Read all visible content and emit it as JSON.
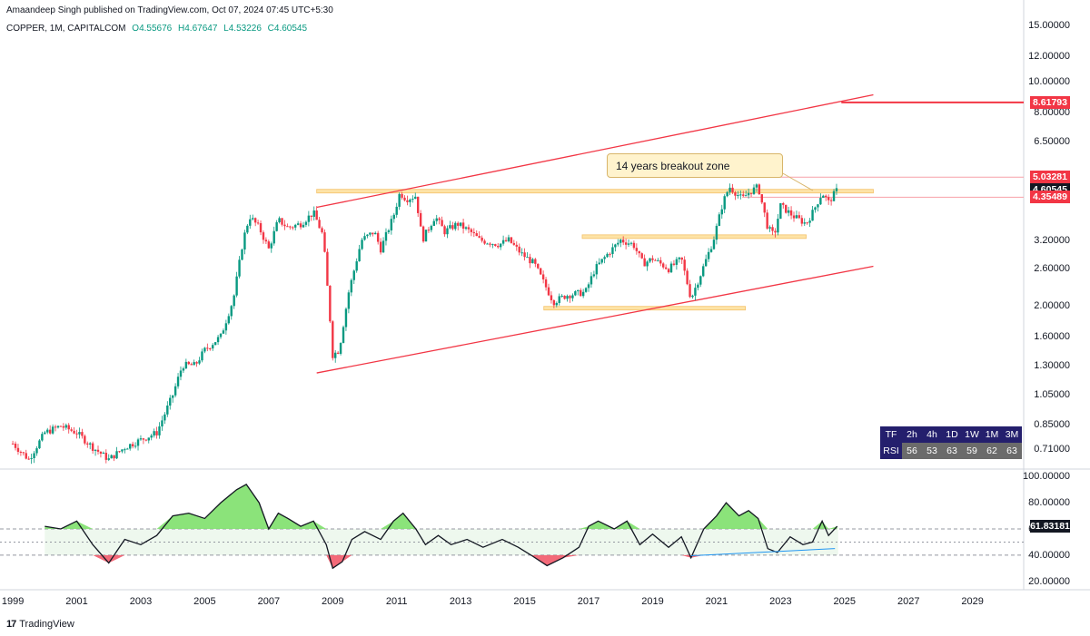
{
  "header": {
    "published": "Amaandeep Singh published on TradingView.com, Oct 07, 2024 07:45 UTC+5:30",
    "symbol": "COPPER, 1M, CAPITALCOM",
    "open": "O4.55676",
    "high": "H4.67647",
    "low": "L4.53226",
    "close": "C4.60545"
  },
  "annotation": {
    "text": "14 years breakout zone"
  },
  "price_labels": [
    {
      "text": "8.61793",
      "value": 8.61793,
      "color": "#f23645"
    },
    {
      "text": "5.03281",
      "value": 5.03281,
      "color": "#f23645"
    },
    {
      "text": "4.60545",
      "value": 4.60545,
      "color": "#131722"
    },
    {
      "text": "4.35489",
      "value": 4.35489,
      "color": "#f23645"
    }
  ],
  "rsi_label": {
    "text": "61.83181",
    "value": 61.83181
  },
  "rsi_table": {
    "header_key": "TF",
    "value_key": "RSI",
    "timeframes": [
      "2h",
      "4h",
      "1D",
      "1W",
      "1M",
      "3M"
    ],
    "values": [
      "56",
      "53",
      "63",
      "59",
      "62",
      "63"
    ]
  },
  "brand": {
    "logo": "17",
    "name": "TradingView"
  },
  "chart_data": [
    {
      "type": "line",
      "title": "COPPER, 1M, CAPITALCOM",
      "scale": "log",
      "ylim": [
        0.62,
        15.0
      ],
      "xlim": [
        1998.6,
        2030.6
      ],
      "y_ticks": [
        "15.00000",
        "12.00000",
        "10.00000",
        "8.00000",
        "6.50000",
        "3.20000",
        "2.60000",
        "2.00000",
        "1.60000",
        "1.30000",
        "1.05000",
        "0.85000",
        "0.71000"
      ],
      "y_tick_values": [
        15,
        12,
        10,
        8,
        6.5,
        3.2,
        2.6,
        2,
        1.6,
        1.3,
        1.05,
        0.85,
        0.71
      ],
      "x_ticks": [
        "1999",
        "2001",
        "2003",
        "2005",
        "2007",
        "2009",
        "2011",
        "2013",
        "2015",
        "2017",
        "2019",
        "2021",
        "2023",
        "2025",
        "2027",
        "2029"
      ],
      "x_tick_values": [
        1999,
        2001,
        2003,
        2005,
        2007,
        2009,
        2011,
        2013,
        2015,
        2017,
        2019,
        2021,
        2023,
        2025,
        2027,
        2029
      ],
      "price": [
        [
          1999.0,
          0.74
        ],
        [
          1999.5,
          0.66
        ],
        [
          2000.0,
          0.8
        ],
        [
          2000.5,
          0.84
        ],
        [
          2001.0,
          0.8
        ],
        [
          2001.5,
          0.72
        ],
        [
          2002.0,
          0.66
        ],
        [
          2002.5,
          0.72
        ],
        [
          2003.0,
          0.76
        ],
        [
          2003.5,
          0.8
        ],
        [
          2004.0,
          1.05
        ],
        [
          2004.3,
          1.3
        ],
        [
          2004.7,
          1.3
        ],
        [
          2005.0,
          1.45
        ],
        [
          2005.5,
          1.6
        ],
        [
          2005.9,
          2.1
        ],
        [
          2006.2,
          3.2
        ],
        [
          2006.4,
          3.8
        ],
        [
          2006.7,
          3.5
        ],
        [
          2007.0,
          3.0
        ],
        [
          2007.3,
          3.7
        ],
        [
          2007.6,
          3.5
        ],
        [
          2008.0,
          3.6
        ],
        [
          2008.4,
          3.9
        ],
        [
          2008.7,
          3.3
        ],
        [
          2008.9,
          1.9
        ],
        [
          2009.0,
          1.4
        ],
        [
          2009.2,
          1.45
        ],
        [
          2009.5,
          2.2
        ],
        [
          2009.9,
          3.2
        ],
        [
          2010.3,
          3.4
        ],
        [
          2010.5,
          3.0
        ],
        [
          2010.9,
          3.8
        ],
        [
          2011.1,
          4.5
        ],
        [
          2011.3,
          4.3
        ],
        [
          2011.6,
          4.4
        ],
        [
          2011.8,
          3.2
        ],
        [
          2012.2,
          3.8
        ],
        [
          2012.5,
          3.4
        ],
        [
          2012.9,
          3.6
        ],
        [
          2013.3,
          3.4
        ],
        [
          2013.6,
          3.2
        ],
        [
          2014.2,
          3.1
        ],
        [
          2014.5,
          3.2
        ],
        [
          2014.9,
          2.9
        ],
        [
          2015.3,
          2.7
        ],
        [
          2015.9,
          2.05
        ],
        [
          2016.3,
          2.15
        ],
        [
          2016.9,
          2.2
        ],
        [
          2017.2,
          2.6
        ],
        [
          2017.6,
          2.9
        ],
        [
          2018.0,
          3.2
        ],
        [
          2018.4,
          3.1
        ],
        [
          2018.7,
          2.7
        ],
        [
          2019.0,
          2.8
        ],
        [
          2019.5,
          2.6
        ],
        [
          2019.9,
          2.8
        ],
        [
          2020.2,
          2.1
        ],
        [
          2020.5,
          2.5
        ],
        [
          2020.9,
          3.2
        ],
        [
          2021.2,
          4.2
        ],
        [
          2021.4,
          4.7
        ],
        [
          2021.8,
          4.3
        ],
        [
          2022.0,
          4.5
        ],
        [
          2022.3,
          4.7
        ],
        [
          2022.6,
          3.5
        ],
        [
          2022.8,
          3.3
        ],
        [
          2023.0,
          4.1
        ],
        [
          2023.4,
          3.8
        ],
        [
          2023.8,
          3.6
        ],
        [
          2024.0,
          3.9
        ],
        [
          2024.3,
          4.5
        ],
        [
          2024.5,
          4.2
        ],
        [
          2024.77,
          4.6
        ]
      ],
      "channel_upper": [
        [
          2008.5,
          4.05
        ],
        [
          2025.9,
          9.1
        ]
      ],
      "channel_lower": [
        [
          2008.5,
          1.23
        ],
        [
          2025.9,
          2.65
        ]
      ],
      "zones": [
        {
          "from": 2008.5,
          "to": 2025.9,
          "value": 4.55
        },
        {
          "from": 2016.8,
          "to": 2023.8,
          "value": 3.28
        },
        {
          "from": 2015.6,
          "to": 2021.9,
          "value": 1.96
        }
      ],
      "resistance_lines": [
        5.03281,
        4.35489
      ],
      "target_line": {
        "from": 2024.9,
        "value": 8.61793
      }
    },
    {
      "type": "line",
      "title": "RSI",
      "ylim": [
        15,
        105
      ],
      "y_ticks": [
        "100.00000",
        "80.00000",
        "60.00000",
        "40.00000",
        "20.00000"
      ],
      "y_tick_values": [
        100,
        80,
        60,
        40,
        20
      ],
      "levels": [
        60,
        50,
        40
      ],
      "rsi": [
        [
          2000.0,
          62
        ],
        [
          2000.5,
          60
        ],
        [
          2001.0,
          66
        ],
        [
          2001.5,
          48
        ],
        [
          2002.0,
          34
        ],
        [
          2002.5,
          52
        ],
        [
          2003.0,
          48
        ],
        [
          2003.5,
          55
        ],
        [
          2004.0,
          70
        ],
        [
          2004.5,
          72
        ],
        [
          2005.0,
          68
        ],
        [
          2005.5,
          80
        ],
        [
          2006.0,
          90
        ],
        [
          2006.3,
          94
        ],
        [
          2006.7,
          80
        ],
        [
          2007.0,
          60
        ],
        [
          2007.3,
          72
        ],
        [
          2007.6,
          68
        ],
        [
          2008.0,
          62
        ],
        [
          2008.4,
          66
        ],
        [
          2008.8,
          48
        ],
        [
          2009.0,
          30
        ],
        [
          2009.3,
          35
        ],
        [
          2009.6,
          52
        ],
        [
          2010.0,
          58
        ],
        [
          2010.5,
          52
        ],
        [
          2010.9,
          66
        ],
        [
          2011.2,
          72
        ],
        [
          2011.6,
          60
        ],
        [
          2011.9,
          48
        ],
        [
          2012.3,
          55
        ],
        [
          2012.7,
          48
        ],
        [
          2013.2,
          52
        ],
        [
          2013.7,
          46
        ],
        [
          2014.3,
          52
        ],
        [
          2014.8,
          46
        ],
        [
          2015.2,
          40
        ],
        [
          2015.7,
          32
        ],
        [
          2016.2,
          38
        ],
        [
          2016.7,
          46
        ],
        [
          2017.0,
          62
        ],
        [
          2017.3,
          66
        ],
        [
          2017.8,
          60
        ],
        [
          2018.2,
          66
        ],
        [
          2018.6,
          48
        ],
        [
          2019.0,
          56
        ],
        [
          2019.5,
          46
        ],
        [
          2019.9,
          54
        ],
        [
          2020.2,
          38
        ],
        [
          2020.6,
          60
        ],
        [
          2021.0,
          70
        ],
        [
          2021.3,
          80
        ],
        [
          2021.7,
          70
        ],
        [
          2022.0,
          74
        ],
        [
          2022.3,
          68
        ],
        [
          2022.6,
          45
        ],
        [
          2022.9,
          42
        ],
        [
          2023.3,
          54
        ],
        [
          2023.7,
          48
        ],
        [
          2024.0,
          50
        ],
        [
          2024.3,
          66
        ],
        [
          2024.5,
          55
        ],
        [
          2024.77,
          62
        ]
      ],
      "divergence_line": [
        [
          2020.2,
          39.5
        ],
        [
          2024.7,
          45
        ]
      ]
    }
  ]
}
